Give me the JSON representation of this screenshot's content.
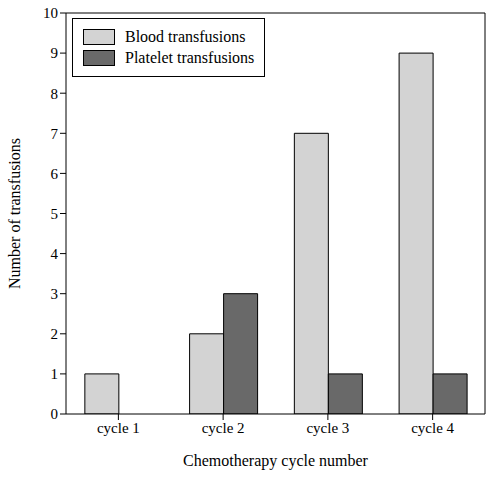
{
  "chart_data": {
    "type": "bar",
    "categories": [
      "cycle 1",
      "cycle 2",
      "cycle 3",
      "cycle 4"
    ],
    "x_label": "Chemotherapy cycle number",
    "y_label": "Number of transfusions",
    "series": [
      {
        "name": "Blood transfusions",
        "color": "#d3d3d3",
        "values": [
          1,
          2,
          7,
          9
        ]
      },
      {
        "name": "Platelet transfusions",
        "color": "#696969",
        "values": [
          0,
          3,
          1,
          1
        ]
      }
    ],
    "ylim": [
      0,
      10
    ],
    "yticks": [
      0,
      1,
      2,
      3,
      4,
      5,
      6,
      7,
      8,
      9,
      10
    ],
    "grid": false,
    "legend": "upper left"
  }
}
